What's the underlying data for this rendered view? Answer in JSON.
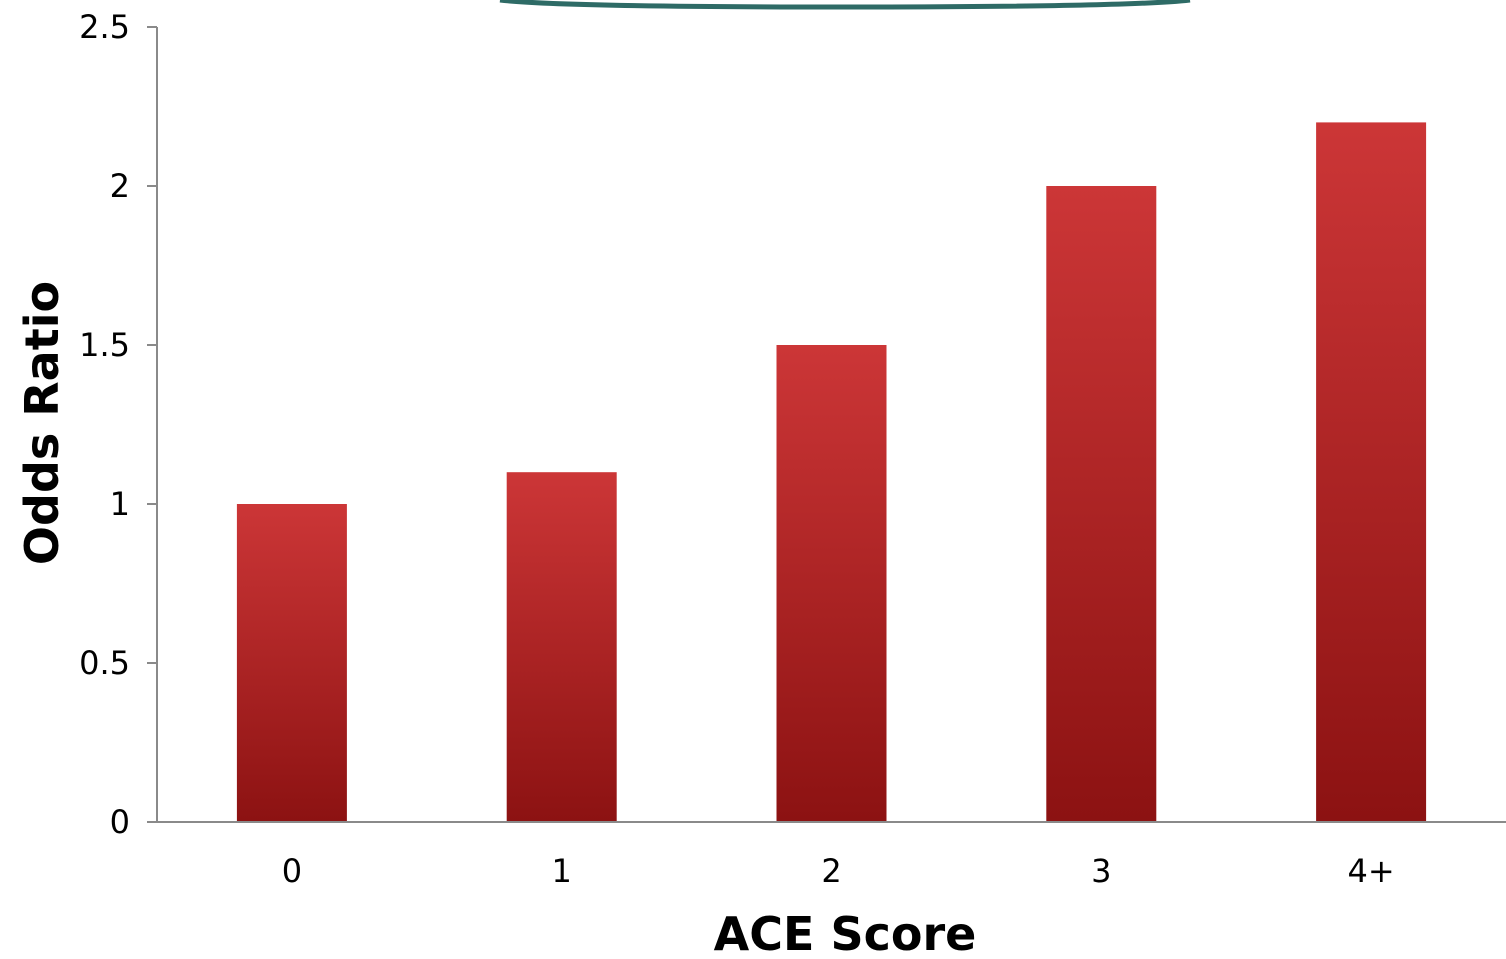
{
  "chart_data": {
    "type": "bar",
    "title": "",
    "xlabel": "ACE Score",
    "ylabel": "Odds Ratio",
    "categories": [
      "0",
      "1",
      "2",
      "3",
      "4+"
    ],
    "values": [
      1.0,
      1.1,
      1.5,
      2.0,
      2.2
    ],
    "ylim": [
      0,
      2.5
    ],
    "yticks": [
      "0",
      "0.5",
      "1",
      "1.5",
      "2",
      "2.5"
    ],
    "grid": false,
    "legend": "none",
    "colors": {
      "bar_top": "#cc3637",
      "bar_bottom": "#8c1212",
      "axis": "#8a8a8a",
      "header_arc": "#2e6b66"
    }
  }
}
